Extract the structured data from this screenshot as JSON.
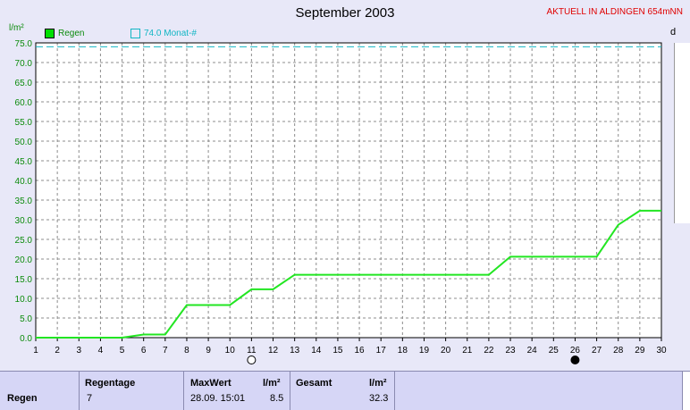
{
  "header": {
    "title": "September 2003",
    "station": "AKTUELL IN ALDINGEN 654mNN",
    "y_unit": "l/m²",
    "right_axis_label": "d"
  },
  "legend": {
    "rain": "Regen",
    "month": "74.0 Monat-#"
  },
  "colors": {
    "rain_line": "#22e622",
    "month_line": "#12b6c4",
    "grid": "#8c8c8c",
    "axis_labels": "#0a8a0a"
  },
  "chart_data": {
    "type": "line",
    "title": "September 2003",
    "ylabel": "l/m²",
    "xlabel": "",
    "xlim": [
      1,
      30
    ],
    "ylim": [
      0,
      75
    ],
    "y_ticks": [
      0,
      5,
      10,
      15,
      20,
      25,
      30,
      35,
      40,
      45,
      50,
      55,
      60,
      65,
      70,
      75
    ],
    "x_ticks": [
      1,
      2,
      3,
      4,
      5,
      6,
      7,
      8,
      9,
      10,
      11,
      12,
      13,
      14,
      15,
      16,
      17,
      18,
      19,
      20,
      21,
      22,
      23,
      24,
      25,
      26,
      27,
      28,
      29,
      30
    ],
    "grid": true,
    "series": [
      {
        "name": "Regen",
        "points": [
          [
            1,
            0
          ],
          [
            5,
            0
          ],
          [
            6,
            0.8
          ],
          [
            7,
            0.8
          ],
          [
            8,
            8.3
          ],
          [
            10,
            8.3
          ],
          [
            11,
            12.3
          ],
          [
            12,
            12.3
          ],
          [
            13,
            16.0
          ],
          [
            22,
            16.0
          ],
          [
            23,
            20.6
          ],
          [
            27,
            20.6
          ],
          [
            28,
            28.7
          ],
          [
            29,
            32.3
          ],
          [
            30,
            32.3
          ]
        ]
      },
      {
        "name": "74.0 Monat-#",
        "points": [
          [
            1,
            74
          ],
          [
            30,
            74
          ]
        ]
      }
    ],
    "moon_markers": [
      {
        "day": 11,
        "phase": "full"
      },
      {
        "day": 26,
        "phase": "new"
      }
    ]
  },
  "table": {
    "row_label": "Regen",
    "rain_days_header": "Regentage",
    "rain_days_value": "7",
    "max_header": "MaxWert",
    "max_unit": "l/m²",
    "max_time": "28.09.  15:01",
    "max_value": "8.5",
    "total_header": "Gesamt",
    "total_unit": "l/m²",
    "total_value": "32.3"
  }
}
